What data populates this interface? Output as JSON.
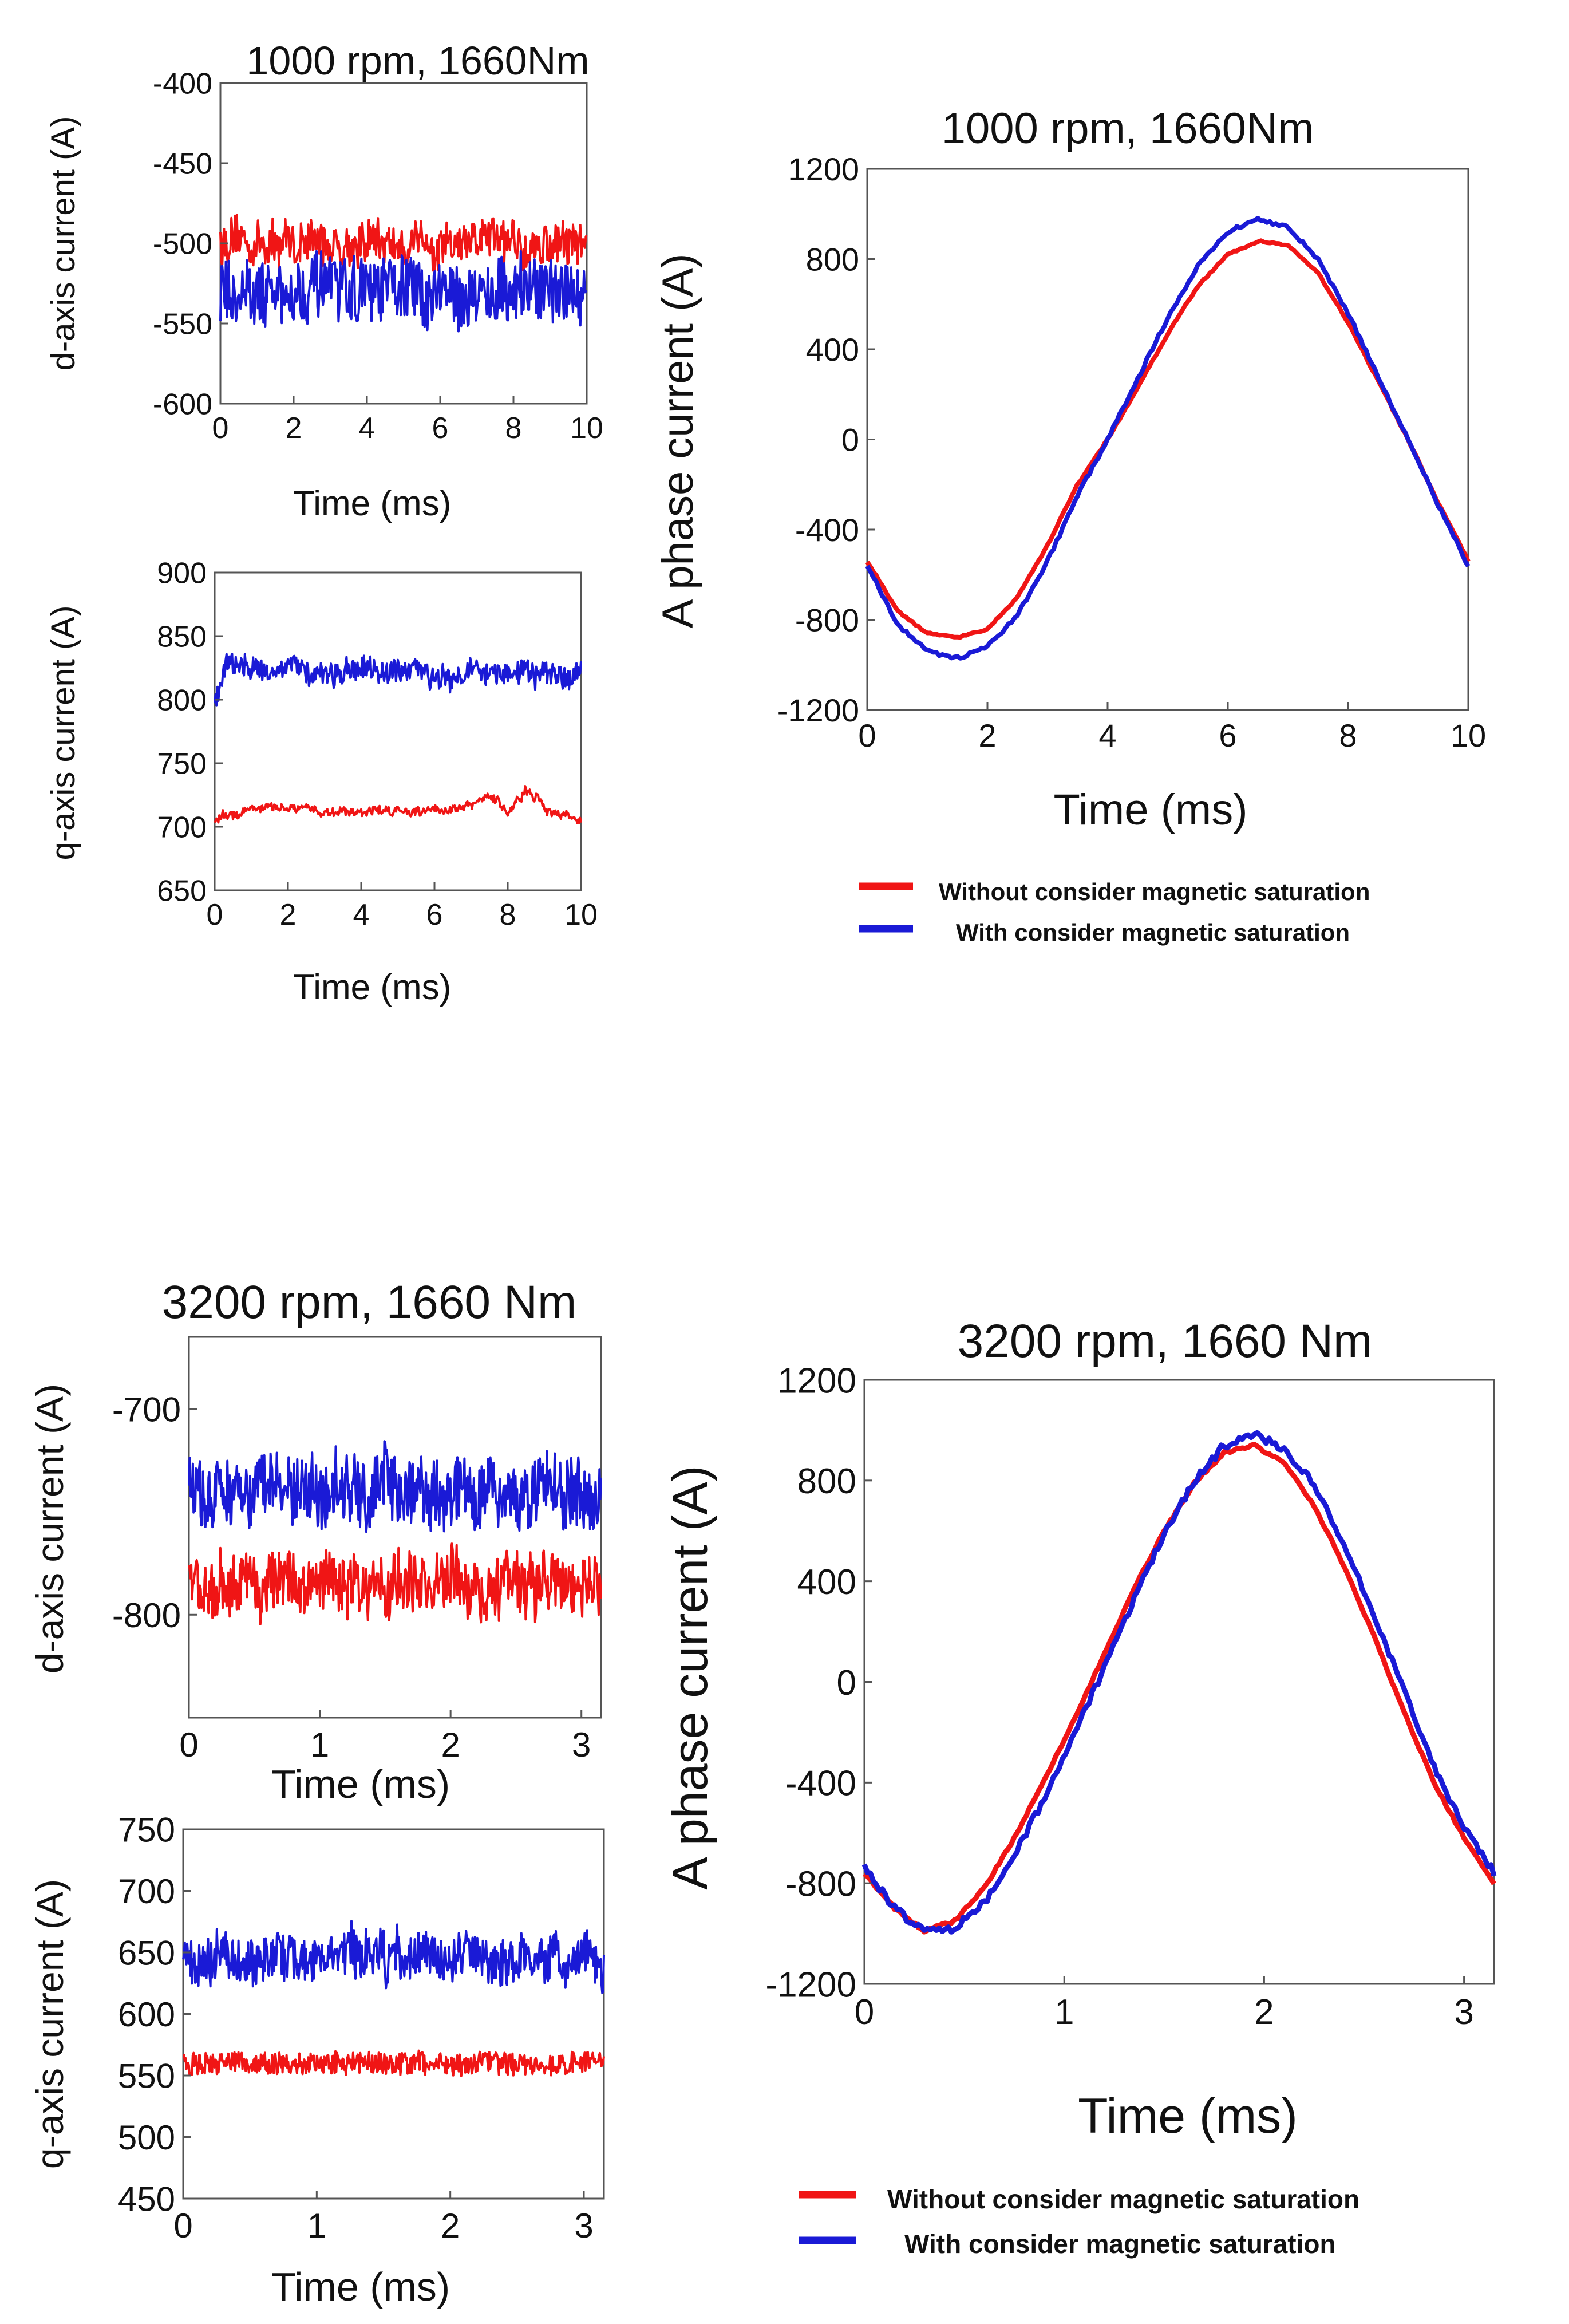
{
  "figure": {
    "section_top_title": "1000 rpm, 1660Nm",
    "section_bottom_title": "3200 rpm, 1660 Nm"
  },
  "colors": {
    "without": "#f01515",
    "with": "#1a1ad6",
    "axis": "#555555"
  },
  "chart_data": [
    {
      "id": "d1",
      "type": "line",
      "title": "1000 rpm, 1660Nm",
      "xlabel": "Time (ms)",
      "ylabel": "d-axis current (A)",
      "xlim": [
        0,
        10
      ],
      "ylim": [
        -600,
        -400
      ],
      "xticks": [
        0,
        2,
        4,
        6,
        8,
        10
      ],
      "yticks": [
        -600,
        -550,
        -500,
        -450,
        -400
      ],
      "series": [
        {
          "name": "Without consider magnetic saturation",
          "color_key": "without",
          "x": [
            0,
            10
          ],
          "y": [
            -500,
            -500
          ],
          "noise": 13,
          "wiggle": 5
        },
        {
          "name": "With consider magnetic saturation",
          "color_key": "with",
          "x": [
            0,
            10
          ],
          "y": [
            -530,
            -530
          ],
          "noise": 20,
          "wiggle": 6
        }
      ]
    },
    {
      "id": "q1",
      "type": "line",
      "title": "",
      "xlabel": "Time (ms)",
      "ylabel": "q-axis current (A)",
      "xlim": [
        0,
        10
      ],
      "ylim": [
        650,
        900
      ],
      "xticks": [
        0,
        2,
        4,
        6,
        8,
        10
      ],
      "yticks": [
        650,
        700,
        750,
        800,
        850,
        900
      ],
      "series": [
        {
          "name": "Without consider magnetic saturation",
          "color_key": "without",
          "x": [
            0,
            1,
            3,
            5,
            7,
            7.5,
            8,
            8.5,
            9,
            9.5,
            10
          ],
          "y": [
            705,
            715,
            712,
            713,
            715,
            725,
            712,
            728,
            715,
            710,
            705
          ],
          "noise": 3,
          "wiggle": 3
        },
        {
          "name": "With consider magnetic saturation",
          "color_key": "with",
          "x": [
            0,
            0.3,
            1,
            3,
            5,
            7,
            9,
            10
          ],
          "y": [
            795,
            828,
            825,
            822,
            820,
            822,
            818,
            822
          ],
          "noise": 9,
          "wiggle": 5
        }
      ]
    },
    {
      "id": "a1",
      "type": "line",
      "title": "1000 rpm, 1660Nm",
      "xlabel": "Time (ms)",
      "ylabel": "A phase current (A)",
      "xlim": [
        0,
        10
      ],
      "ylim": [
        -1200,
        1200
      ],
      "xticks": [
        0,
        2,
        4,
        6,
        8,
        10
      ],
      "yticks": [
        -1200,
        -800,
        -400,
        0,
        400,
        800,
        1200
      ],
      "series": [
        {
          "name": "Without consider magnetic saturation",
          "color_key": "without",
          "x": [
            0,
            0.5,
            1,
            1.5,
            2,
            2.5,
            3,
            3.5,
            4,
            4.5,
            5,
            5.5,
            6,
            6.5,
            7,
            7.5,
            8,
            8.5,
            9,
            9.5,
            10
          ],
          "y": [
            -540,
            -760,
            -860,
            -880,
            -840,
            -700,
            -470,
            -200,
            0,
            230,
            470,
            680,
            820,
            880,
            860,
            740,
            520,
            260,
            0,
            -280,
            -540
          ],
          "noise": 4,
          "wiggle": 0
        },
        {
          "name": "With consider magnetic saturation",
          "color_key": "with",
          "x": [
            0,
            0.5,
            1,
            1.5,
            2,
            2.5,
            3,
            3.5,
            4,
            4.5,
            5,
            5.5,
            6,
            6.5,
            7,
            7.5,
            8,
            8.5,
            9,
            9.5,
            10
          ],
          "y": [
            -560,
            -820,
            -940,
            -970,
            -920,
            -780,
            -540,
            -250,
            0,
            270,
            540,
            770,
            920,
            980,
            940,
            800,
            560,
            280,
            0,
            -290,
            -560
          ],
          "noise": 8,
          "wiggle": 0
        }
      ]
    },
    {
      "id": "d2",
      "type": "line",
      "title": "3200 rpm, 1660 Nm",
      "xlabel": "Time (ms)",
      "ylabel": "d-axis current (A)",
      "xlim": [
        0,
        3.15
      ],
      "ylim": [
        -850,
        -665
      ],
      "xticks": [
        0,
        1,
        2,
        3
      ],
      "yticks": [
        -800,
        -700
      ],
      "series": [
        {
          "name": "Without consider magnetic saturation",
          "color_key": "without",
          "x": [
            0,
            3.15
          ],
          "y": [
            -785,
            -785
          ],
          "noise": 14,
          "wiggle": 9
        },
        {
          "name": "With consider magnetic saturation",
          "color_key": "with",
          "x": [
            0,
            3.15
          ],
          "y": [
            -740,
            -740
          ],
          "noise": 16,
          "wiggle": 7
        }
      ]
    },
    {
      "id": "q2",
      "type": "line",
      "title": "",
      "xlabel": "Time (ms)",
      "ylabel": "q-axis current (A)",
      "xlim": [
        0,
        3.15
      ],
      "ylim": [
        450,
        750
      ],
      "xticks": [
        0,
        1,
        2,
        3
      ],
      "yticks": [
        450,
        500,
        550,
        600,
        650,
        700,
        750
      ],
      "series": [
        {
          "name": "Without consider magnetic saturation",
          "color_key": "without",
          "x": [
            0,
            3.15
          ],
          "y": [
            560,
            560
          ],
          "noise": 9,
          "wiggle": 2
        },
        {
          "name": "With consider magnetic saturation",
          "color_key": "with",
          "x": [
            0,
            3.15
          ],
          "y": [
            645,
            645
          ],
          "noise": 18,
          "wiggle": 10
        }
      ]
    },
    {
      "id": "a2",
      "type": "line",
      "title": "3200 rpm, 1660 Nm",
      "xlabel": "Time (ms)",
      "ylabel": "A phase current (A)",
      "xlim": [
        0,
        3.15
      ],
      "ylim": [
        -1200,
        1200
      ],
      "xticks": [
        0,
        1,
        2,
        3
      ],
      "yticks": [
        -1200,
        -800,
        -400,
        0,
        400,
        800,
        1200
      ],
      "series": [
        {
          "name": "Without consider magnetic saturation",
          "color_key": "without",
          "x": [
            0,
            0.15,
            0.3,
            0.45,
            0.6,
            0.75,
            0.9,
            1.05,
            1.2,
            1.35,
            1.5,
            1.65,
            1.8,
            1.95,
            2.1,
            2.25,
            2.4,
            2.55,
            2.7,
            2.85,
            3.0,
            3.15
          ],
          "y": [
            -760,
            -900,
            -990,
            -950,
            -820,
            -620,
            -390,
            -150,
            110,
            370,
            600,
            790,
            910,
            940,
            870,
            700,
            460,
            180,
            -120,
            -400,
            -620,
            -800
          ],
          "noise": 5,
          "wiggle": 0
        },
        {
          "name": "With consider magnetic saturation",
          "color_key": "with",
          "x": [
            0,
            0.15,
            0.3,
            0.45,
            0.6,
            0.75,
            0.9,
            1.05,
            1.2,
            1.35,
            1.5,
            1.65,
            1.8,
            1.95,
            2.1,
            2.25,
            2.4,
            2.55,
            2.7,
            2.85,
            3.0,
            3.15
          ],
          "y": [
            -740,
            -900,
            -990,
            -980,
            -880,
            -690,
            -460,
            -210,
            60,
            330,
            590,
            800,
            940,
            980,
            930,
            780,
            550,
            270,
            -40,
            -340,
            -580,
            -760
          ],
          "noise": 16,
          "wiggle": 0
        }
      ]
    }
  ],
  "legend": {
    "top": [
      "Without consider magnetic saturation",
      "With consider magnetic saturation"
    ],
    "bottom": [
      "Without consider magnetic saturation",
      "With consider magnetic saturation"
    ]
  }
}
